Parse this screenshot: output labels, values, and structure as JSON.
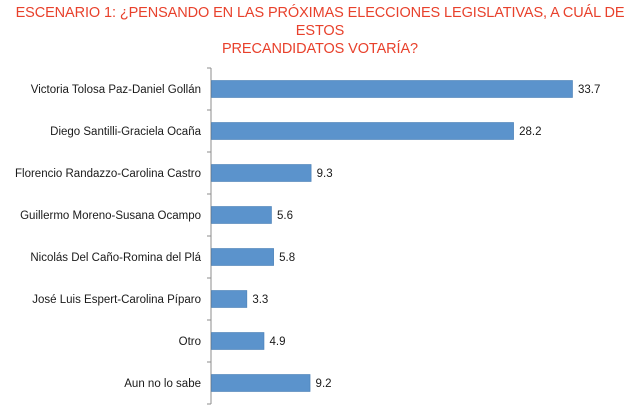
{
  "chart_data": {
    "type": "bar",
    "orientation": "horizontal",
    "title_lines": [
      "ESCENARIO 1: ¿PENSANDO EN LAS PRÓXIMAS ELECCIONES LEGISLATIVAS, A CUÁL DE ESTOS",
      "PRECANDIDATOS VOTARÍA?"
    ],
    "categories": [
      "Victoria Tolosa Paz-Daniel Gollán",
      "Diego Santilli-Graciela Ocaña",
      "Florencio Randazzo-Carolina Castro",
      "Guillermo Moreno-Susana Ocampo",
      "Nicolás Del Caño-Romina del Plá",
      "José Luis Espert-Carolina Píparo",
      "Otro",
      "Aun no lo sabe"
    ],
    "values": [
      33.7,
      28.2,
      9.3,
      5.6,
      5.8,
      3.3,
      4.9,
      9.2
    ],
    "value_labels": [
      "33.7",
      "28.2",
      "9.3",
      "5.6",
      "5.8",
      "3.3",
      "4.9",
      "9.2"
    ],
    "xlim": [
      0,
      40
    ],
    "grid": false,
    "legend": "none",
    "colors": {
      "bar": "#5b93cc",
      "bar_edge": "#4a7fb5",
      "title": "#e8412c",
      "axis": "#8c8c8c"
    }
  }
}
